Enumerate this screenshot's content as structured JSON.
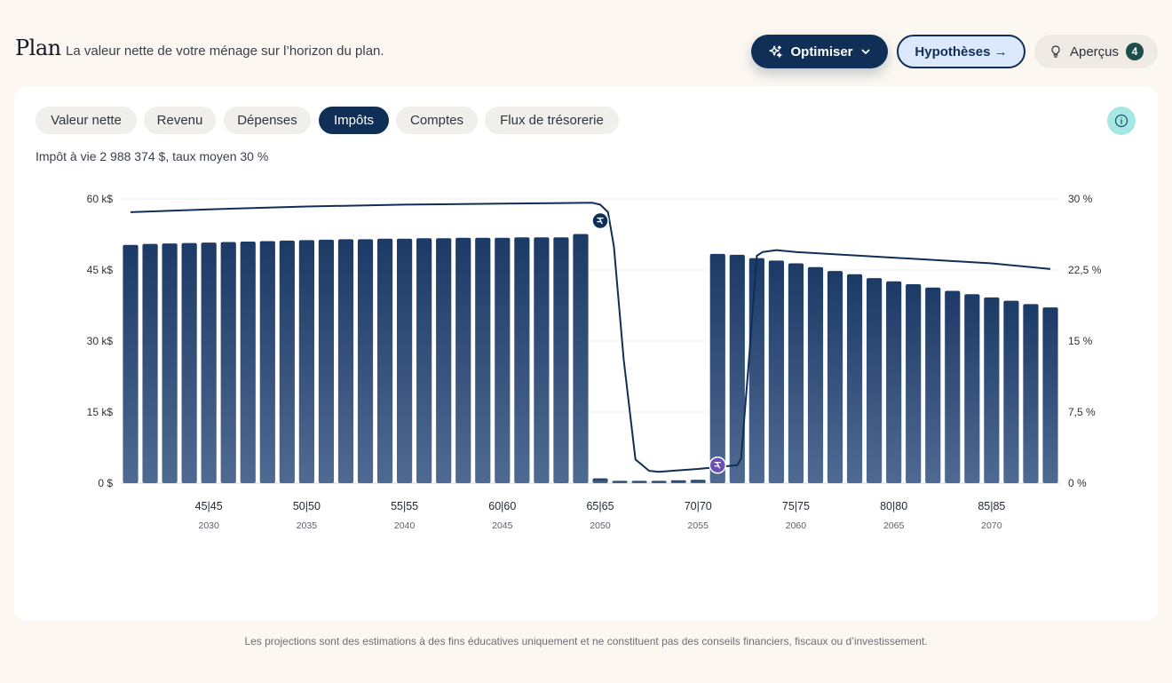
{
  "header": {
    "title": "Plan",
    "subtitle": "La valeur nette de votre ménage sur l’horizon du plan.",
    "optimize_label": "Optimiser",
    "hypotheses_label": "Hypothèses →",
    "apercus_label": "Aperçus",
    "apercus_count": "4"
  },
  "tabs": [
    {
      "label": "Valeur nette"
    },
    {
      "label": "Revenu"
    },
    {
      "label": "Dépenses"
    },
    {
      "label": "Impôts",
      "active": true
    },
    {
      "label": "Comptes"
    },
    {
      "label": "Flux de trésorerie"
    }
  ],
  "summary": "Impôt à vie 2 988 374 $, taux moyen 30 %",
  "disclaimer": "Les projections sont des estimations à des fins éducatives uniquement et ne constituent pas des conseils financiers, fiscaux ou d’investissement.",
  "colors": {
    "bar_top": "#1c3a66",
    "bar_bottom": "#4f6a92",
    "line": "#0f2f57",
    "marker_primary": "#0f2f57",
    "marker_secondary": "#6b4fb5",
    "accent": "#a6e6e3"
  },
  "chart_data": {
    "type": "bar",
    "left_axis": {
      "ticks": [
        0,
        15,
        30,
        45,
        60
      ],
      "tick_labels": [
        "0 $",
        "15 k$",
        "30 k$",
        "45 k$",
        "60 k$"
      ],
      "range": [
        0,
        60
      ]
    },
    "right_axis": {
      "ticks": [
        0,
        7.5,
        15,
        22.5,
        30
      ],
      "tick_labels": [
        "0 %",
        "7,5 %",
        "15 %",
        "22,5 %",
        "30 %"
      ],
      "range": [
        0,
        30
      ]
    },
    "x_start_year": 2026,
    "x_labels": [
      {
        "year": 2030,
        "age": "45|45"
      },
      {
        "year": 2035,
        "age": "50|50"
      },
      {
        "year": 2040,
        "age": "55|55"
      },
      {
        "year": 2045,
        "age": "60|60"
      },
      {
        "year": 2050,
        "age": "65|65"
      },
      {
        "year": 2055,
        "age": "70|70"
      },
      {
        "year": 2060,
        "age": "75|75"
      },
      {
        "year": 2065,
        "age": "80|80"
      },
      {
        "year": 2070,
        "age": "85|85"
      }
    ],
    "series": [
      {
        "axis": "left",
        "type": "bar",
        "values": [
          50.3,
          50.5,
          50.6,
          50.7,
          50.8,
          50.9,
          51.0,
          51.1,
          51.2,
          51.3,
          51.4,
          51.5,
          51.5,
          51.6,
          51.6,
          51.7,
          51.7,
          51.8,
          51.8,
          51.8,
          51.9,
          51.9,
          51.9,
          52.6,
          1.0,
          0.5,
          0.5,
          0.5,
          0.6,
          0.7,
          48.4,
          48.2,
          47.5,
          47.0,
          46.4,
          45.6,
          44.8,
          44.1,
          43.3,
          42.6,
          42.0,
          41.3,
          40.6,
          39.9,
          39.2,
          38.5,
          37.8,
          37.1
        ]
      },
      {
        "axis": "right",
        "type": "line",
        "points": [
          [
            2026,
            28.6
          ],
          [
            2030,
            28.9
          ],
          [
            2035,
            29.2
          ],
          [
            2040,
            29.4
          ],
          [
            2045,
            29.5
          ],
          [
            2049.6,
            29.6
          ],
          [
            2050,
            29.4
          ],
          [
            2050.4,
            28.6
          ],
          [
            2050.7,
            25
          ],
          [
            2051.2,
            13
          ],
          [
            2051.8,
            2.5
          ],
          [
            2052.5,
            1.3
          ],
          [
            2053,
            1.2
          ],
          [
            2055,
            1.5
          ],
          [
            2057,
            1.9
          ],
          [
            2057.2,
            2.6
          ],
          [
            2057.6,
            13
          ],
          [
            2058,
            24
          ],
          [
            2058.3,
            24.4
          ],
          [
            2059,
            24.6
          ],
          [
            2060,
            24.4
          ],
          [
            2065,
            23.8
          ],
          [
            2070,
            23.2
          ],
          [
            2073,
            22.6
          ]
        ]
      }
    ],
    "markers": [
      {
        "year": 2050,
        "value": 27.7,
        "axis": "right",
        "icon": "tax-marker-icon",
        "style": "primary"
      },
      {
        "year": 2056,
        "value": 1.9,
        "axis": "right",
        "icon": "tax-marker-icon",
        "style": "secondary"
      }
    ]
  }
}
